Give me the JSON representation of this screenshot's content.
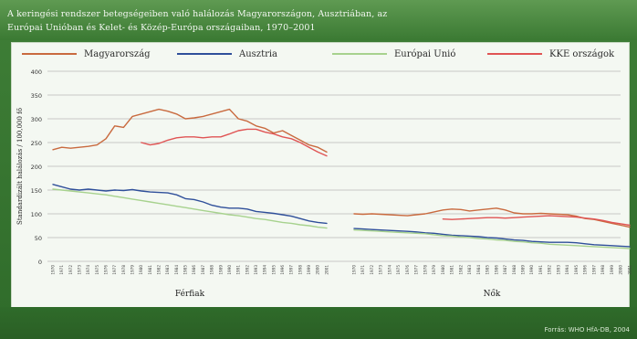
{
  "header": {
    "title_line1": "A keringési rendszer betegségeiben való halálozás Magyarországon, Ausztriában, az",
    "title_line2": "Európai Unióban és Kelet- és Közép-Európa országaiban, 1970–2001"
  },
  "source": "Forrás: WHO HfA-DB, 2004",
  "colors": {
    "Magyarország": "#c96a3f",
    "Ausztria": "#2f4f9a",
    "Európai Unió": "#a7d28e",
    "KKE országok": "#e05454"
  },
  "chart_data": {
    "type": "line",
    "ylabel": "Standardizált halálozás / 100,000 fő",
    "ylim": [
      0,
      400
    ],
    "yticks": [
      0,
      50,
      100,
      150,
      200,
      250,
      300,
      350,
      400
    ],
    "grid": true,
    "legend": {
      "placement": "top",
      "entries": [
        "Magyarország",
        "Ausztria",
        "Európai Unió",
        "KKE országok"
      ]
    },
    "years": [
      1970,
      1971,
      1972,
      1973,
      1974,
      1975,
      1976,
      1977,
      1978,
      1979,
      1980,
      1981,
      1982,
      1983,
      1984,
      1985,
      1986,
      1987,
      1988,
      1989,
      1990,
      1991,
      1992,
      1993,
      1994,
      1995,
      1996,
      1997,
      1998,
      1999,
      2000,
      2001
    ],
    "panels": [
      {
        "label": "Férfiak",
        "series": [
          {
            "name": "Magyarország",
            "values": [
              235,
              240,
              238,
              240,
              242,
              245,
              258,
              285,
              282,
              305,
              310,
              315,
              320,
              316,
              310,
              300,
              302,
              305,
              310,
              315,
              320,
              300,
              295,
              285,
              280,
              270,
              275,
              265,
              255,
              245,
              240,
              230
            ]
          },
          {
            "name": "Ausztria",
            "values": [
              162,
              157,
              152,
              150,
              152,
              150,
              148,
              150,
              149,
              151,
              148,
              146,
              145,
              144,
              140,
              132,
              130,
              125,
              118,
              114,
              112,
              112,
              110,
              105,
              103,
              101,
              98,
              95,
              90,
              85,
              82,
              80
            ]
          },
          {
            "name": "Európai Unió",
            "values": [
              152,
              150,
              148,
              146,
              144,
              142,
              140,
              137,
              134,
              131,
              128,
              125,
              122,
              119,
              116,
              113,
              110,
              107,
              104,
              101,
              98,
              96,
              93,
              90,
              88,
              85,
              82,
              80,
              77,
              75,
              72,
              70
            ]
          },
          {
            "name": "KKE országok",
            "values": [
              null,
              null,
              null,
              null,
              null,
              null,
              null,
              null,
              null,
              null,
              250,
              245,
              248,
              255,
              260,
              262,
              262,
              260,
              262,
              262,
              268,
              275,
              278,
              278,
              272,
              268,
              262,
              258,
              250,
              240,
              230,
              222
            ]
          }
        ]
      },
      {
        "label": "Nők",
        "series": [
          {
            "name": "Magyarország",
            "values": [
              100,
              99,
              100,
              99,
              98,
              97,
              96,
              98,
              100,
              104,
              108,
              110,
              109,
              106,
              108,
              110,
              112,
              108,
              102,
              100,
              100,
              101,
              100,
              99,
              98,
              95,
              90,
              88,
              84,
              80,
              76,
              72
            ]
          },
          {
            "name": "Ausztria",
            "values": [
              69,
              68,
              67,
              66,
              65,
              64,
              63,
              62,
              60,
              59,
              57,
              55,
              54,
              53,
              52,
              50,
              49,
              47,
              45,
              44,
              42,
              41,
              40,
              40,
              40,
              39,
              37,
              35,
              34,
              33,
              32,
              31
            ]
          },
          {
            "name": "Európai Unió",
            "values": [
              66,
              65,
              64,
              63,
              62,
              61,
              60,
              59,
              58,
              56,
              54,
              53,
              51,
              50,
              48,
              47,
              45,
              44,
              42,
              41,
              39,
              38,
              36,
              35,
              34,
              33,
              32,
              31,
              30,
              29,
              28,
              27
            ]
          },
          {
            "name": "KKE országok",
            "values": [
              null,
              null,
              null,
              null,
              null,
              null,
              null,
              null,
              null,
              null,
              89,
              88,
              89,
              90,
              91,
              92,
              92,
              91,
              92,
              93,
              94,
              95,
              96,
              95,
              94,
              93,
              91,
              89,
              86,
              82,
              79,
              76
            ]
          }
        ]
      }
    ]
  }
}
